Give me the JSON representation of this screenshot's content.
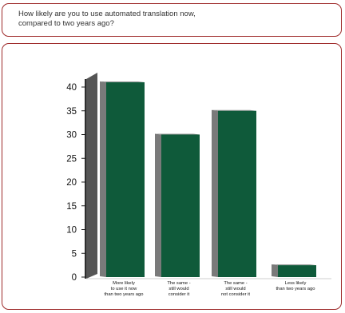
{
  "question": {
    "line1": "How likely are you to use automated translation now,",
    "line2": "compared to two years ago?"
  },
  "colors": {
    "frame": "#9e2a2a",
    "bar_front": "#0f5a3a",
    "bar_side": "#7a7a7a",
    "bar_top": "#9c9c9c",
    "wall": "#555555"
  },
  "chart_data": {
    "type": "bar",
    "title": "",
    "xlabel": "",
    "ylabel": "",
    "ylim": [
      0,
      40
    ],
    "yticks": [
      0,
      5,
      10,
      15,
      20,
      25,
      30,
      35,
      40
    ],
    "grid": false,
    "legend": "none",
    "categories": [
      "More likely to use it now than two years ago",
      "The same - still would consider it",
      "The same - still would not consider it",
      "Less likely than two years ago"
    ],
    "category_lines": [
      [
        "More likely",
        "to use it now",
        "than two years ago"
      ],
      [
        "The same -",
        "still would",
        "consider it"
      ],
      [
        "The same -",
        "still would",
        "not consider it"
      ],
      [
        "Less likely",
        "than two years ago"
      ]
    ],
    "values": [
      41,
      30,
      35,
      2.5
    ]
  }
}
